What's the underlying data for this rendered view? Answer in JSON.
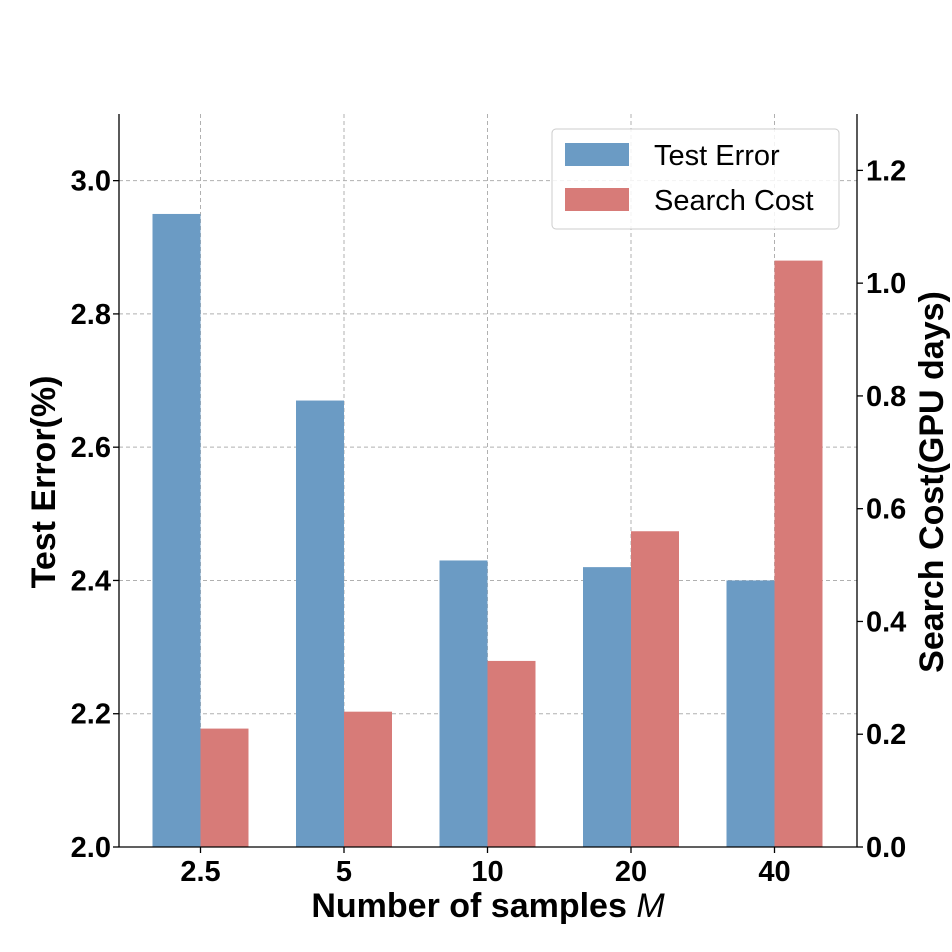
{
  "chart_data": {
    "type": "bar",
    "categories": [
      "2.5",
      "5",
      "10",
      "20",
      "40"
    ],
    "series": [
      {
        "name": "Test Error",
        "axis": "left",
        "color": "#6b9bc4",
        "values": [
          2.95,
          2.67,
          2.43,
          2.42,
          2.4
        ]
      },
      {
        "name": "Search Cost",
        "axis": "right",
        "color": "#d77b78",
        "values": [
          0.21,
          0.24,
          0.33,
          0.56,
          1.04
        ]
      }
    ],
    "xlabel": "Number of samples",
    "xlabel_var": "M",
    "ylabel": "Test Error(%)",
    "ylabel_right": "Search Cost(GPU days)",
    "ylim": [
      2.0,
      3.1
    ],
    "ylim_right": [
      0.0,
      1.3
    ],
    "yticks": [
      "2.0",
      "2.2",
      "2.4",
      "2.6",
      "2.8",
      "3.0"
    ],
    "yticks_right": [
      "0.0",
      "0.2",
      "0.4",
      "0.6",
      "0.8",
      "1.0",
      "1.2"
    ],
    "grid": true,
    "legend_position": "top-right"
  }
}
